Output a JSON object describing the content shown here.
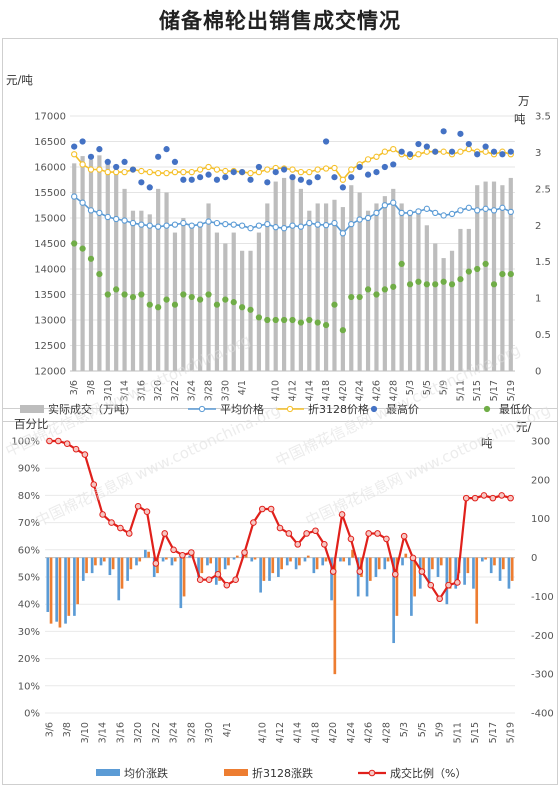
{
  "title": "储备棉轮出销售成交情况",
  "watermark": "中国棉花信息网 www.cottonchina.org",
  "chart_data": [
    {
      "type": "bar+line",
      "left_unit": "元/吨",
      "right_unit_lines": [
        "万",
        "吨"
      ],
      "ylim": [
        12000,
        17000
      ],
      "yticks": [
        12000,
        12500,
        13000,
        13500,
        14000,
        14500,
        15000,
        15500,
        16000,
        16500,
        17000
      ],
      "y2lim": [
        0,
        3.5
      ],
      "y2ticks": [
        "0",
        "0.5",
        "1",
        "1.5",
        "2",
        "2.5",
        "3",
        "3.5"
      ],
      "x": [
        "3/6",
        "3/7",
        "3/8",
        "3/9",
        "3/10",
        "3/13",
        "3/14",
        "3/15",
        "3/16",
        "3/17",
        "3/20",
        "3/21",
        "3/22",
        "3/23",
        "3/24",
        "3/27",
        "3/28",
        "3/29",
        "3/30",
        "3/31",
        "4/1",
        "4/5",
        "4/6",
        "4/7",
        "4/10",
        "4/11",
        "4/12",
        "4/13",
        "4/14",
        "4/17",
        "4/18",
        "4/19",
        "4/20",
        "4/21",
        "4/24",
        "4/25",
        "4/26",
        "4/27",
        "4/28",
        "5/2",
        "5/3",
        "5/4",
        "5/5",
        "5/8",
        "5/9",
        "5/10",
        "5/11",
        "5/12",
        "5/15",
        "5/16",
        "5/17",
        "5/18",
        "5/19"
      ],
      "xtick_labels": [
        "3/6",
        "3/8",
        "3/10",
        "3/14",
        "3/16",
        "3/20",
        "3/22",
        "3/24",
        "3/28",
        "3/30",
        "4/1",
        "4/10",
        "4/12",
        "4/14",
        "4/18",
        "4/20",
        "4/24",
        "4/26",
        "4/28",
        "5/3",
        "5/5",
        "5/9",
        "5/11",
        "5/15",
        "5/17",
        "5/19"
      ],
      "volume_wt": [
        2.85,
        2.95,
        2.9,
        2.96,
        2.85,
        2.75,
        2.5,
        2.2,
        2.2,
        2.15,
        2.5,
        2.45,
        1.9,
        2.1,
        2.0,
        2.05,
        2.3,
        1.9,
        1.75,
        1.9,
        1.65,
        1.65,
        1.9,
        2.3,
        2.6,
        2.65,
        2.7,
        2.5,
        2.2,
        2.3,
        2.3,
        2.35,
        2.25,
        2.55,
        2.45,
        2.2,
        2.3,
        2.4,
        2.5,
        2.3,
        2.15,
        2.2,
        2.0,
        1.75,
        1.55,
        1.65,
        1.95,
        1.95,
        2.55,
        2.6,
        2.6,
        2.55,
        2.65
      ],
      "series": [
        {
          "name": "实际成交（万吨）",
          "axis": "right",
          "kind": "bar",
          "color": "#bdbdbd"
        },
        {
          "name": "平均价格",
          "color": "#5b9bd5",
          "values": [
            15420,
            15300,
            15150,
            15100,
            15020,
            14980,
            14950,
            14900,
            14870,
            14850,
            14830,
            14850,
            14870,
            14900,
            14850,
            14870,
            14930,
            14900,
            14880,
            14870,
            14850,
            14800,
            14850,
            14880,
            14820,
            14800,
            14850,
            14830,
            14900,
            14870,
            14860,
            14900,
            14700,
            14880,
            14970,
            15000,
            15100,
            15250,
            15300,
            15100,
            15100,
            15130,
            15180,
            15100,
            15050,
            15080,
            15150,
            15200,
            15150,
            15180,
            15150,
            15200,
            15120
          ]
        },
        {
          "name": "折3128价格",
          "color": "#f5c02a",
          "values": [
            16250,
            16050,
            15950,
            15950,
            15900,
            15900,
            15900,
            15950,
            15920,
            15900,
            15880,
            15880,
            15900,
            15900,
            15900,
            15950,
            16000,
            15950,
            15920,
            15920,
            15900,
            15880,
            15900,
            15950,
            15980,
            15970,
            15950,
            15900,
            15900,
            15950,
            15970,
            15980,
            15750,
            15950,
            16050,
            16150,
            16200,
            16300,
            16350,
            16250,
            16200,
            16250,
            16300,
            16300,
            16300,
            16250,
            16300,
            16350,
            16300,
            16300,
            16250,
            16300,
            16250
          ]
        },
        {
          "name": "最高价",
          "color": "#4472c4",
          "values": [
            16400,
            16500,
            16200,
            16350,
            16100,
            16000,
            16100,
            15950,
            15700,
            15600,
            16200,
            16350,
            16100,
            15750,
            15750,
            15800,
            15850,
            15750,
            15800,
            15900,
            15900,
            15750,
            16000,
            15700,
            15900,
            15950,
            15800,
            15750,
            15700,
            15800,
            16500,
            15800,
            15600,
            15800,
            16000,
            15850,
            15900,
            16000,
            16050,
            16300,
            16250,
            16450,
            16400,
            16300,
            16700,
            16300,
            16650,
            16450,
            16250,
            16400,
            16300,
            16250,
            16300
          ]
        },
        {
          "name": "最低价",
          "color": "#70ad47",
          "values": [
            14500,
            14400,
            14200,
            13900,
            13500,
            13600,
            13500,
            13450,
            13500,
            13300,
            13250,
            13400,
            13300,
            13500,
            13450,
            13400,
            13500,
            13300,
            13400,
            13350,
            13250,
            13200,
            13050,
            13000,
            13000,
            13000,
            13000,
            12950,
            13000,
            12950,
            12900,
            13300,
            12800,
            13450,
            13450,
            13600,
            13500,
            13600,
            13650,
            14100,
            13700,
            13750,
            13700,
            13700,
            13750,
            13700,
            13800,
            13950,
            14000,
            14100,
            13700,
            13900,
            13900
          ]
        }
      ],
      "legend": [
        "实际成交（万吨）",
        "平均价格",
        "折3128价格",
        "最高价",
        "最低价"
      ],
      "legend_position": "bottom"
    },
    {
      "type": "bar+line",
      "left_unit": "百分比",
      "right_unit_lines": [
        "元/",
        "吨"
      ],
      "ylim": [
        0,
        100
      ],
      "yticks": [
        "0%",
        "10%",
        "20%",
        "30%",
        "40%",
        "50%",
        "60%",
        "70%",
        "80%",
        "90%",
        "100%"
      ],
      "y2lim": [
        -400,
        300
      ],
      "y2ticks": [
        "-400",
        "-300",
        "-200",
        "-100",
        "0",
        "100",
        "200",
        "300"
      ],
      "series": [
        {
          "name": "均价涨跌",
          "axis": "right",
          "kind": "bar",
          "color": "#5b9bd5",
          "values": [
            -140,
            -165,
            -170,
            -150,
            -60,
            -40,
            -20,
            -45,
            -110,
            -60,
            -20,
            20,
            -50,
            -10,
            -20,
            -130,
            5,
            -50,
            -20,
            -70,
            -30,
            -5,
            15,
            -10,
            -90,
            -60,
            -50,
            -20,
            -30,
            -10,
            -40,
            -20,
            -110,
            -10,
            -20,
            -100,
            -100,
            -50,
            -30,
            -220,
            -20,
            -150,
            -80,
            -70,
            -50,
            -120,
            -80,
            -70,
            -80,
            -10,
            -40,
            -60,
            -80
          ],
          "values_shown": [
            -140,
            -165,
            -170,
            -150,
            -60,
            -40,
            -20,
            -45,
            -110,
            -60,
            -20,
            20,
            -50,
            -10,
            -20,
            -130,
            5,
            -50,
            -20,
            -70,
            -30,
            -5,
            15,
            -10,
            -90,
            -60,
            -50,
            -20,
            -30,
            -10,
            -40,
            -20,
            -110,
            -10,
            -20,
            -100,
            -100,
            -50,
            -30,
            -220,
            -20,
            -150,
            -80,
            -70,
            -50,
            -120,
            -80,
            -70,
            -80,
            -10,
            -40,
            -60,
            -80
          ]
        },
        {
          "name": "折3128涨跌",
          "axis": "right",
          "kind": "bar",
          "color": "#ed7d31",
          "values": [
            -170,
            -180,
            -150,
            -120,
            -40,
            -20,
            -10,
            -30,
            -80,
            -30,
            -10,
            15,
            -40,
            -5,
            -10,
            -100,
            10,
            -40,
            -15,
            -60,
            -20,
            5,
            20,
            -5,
            -60,
            -40,
            -30,
            -10,
            -20,
            5,
            -30,
            -10,
            -300,
            -10,
            20,
            -50,
            -60,
            -30,
            -10,
            -150,
            10,
            -100,
            -40,
            -30,
            -20,
            -80,
            -40,
            -40,
            -170,
            -5,
            -20,
            -30,
            -60
          ]
        },
        {
          "name": "成交比例（%）",
          "color": "#e0201b",
          "values": [
            100,
            100,
            99,
            97,
            95,
            84,
            73,
            70,
            68,
            66,
            76,
            74,
            55,
            66,
            60,
            58,
            59,
            49,
            49,
            51,
            47,
            49,
            59,
            70,
            75,
            75,
            68,
            66,
            62,
            66,
            67,
            62,
            52,
            73,
            64,
            52,
            66,
            66,
            64,
            51,
            65,
            57,
            52,
            47,
            42,
            47,
            48,
            79,
            79,
            80,
            79,
            80,
            79
          ]
        }
      ],
      "legend": [
        "均价涨跌",
        "折3128涨跌",
        "成交比例（%）"
      ],
      "legend_position": "bottom"
    }
  ]
}
